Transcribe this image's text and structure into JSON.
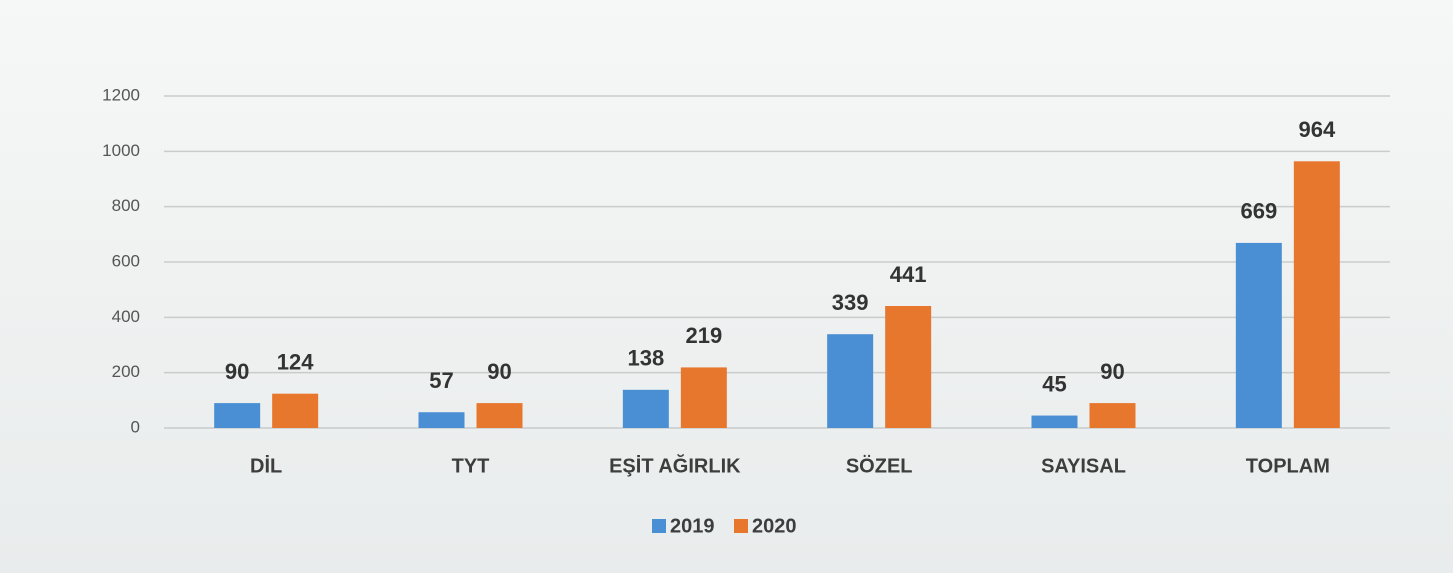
{
  "chart_data": {
    "type": "bar",
    "categories": [
      "DİL",
      "TYT",
      "EŞİT AĞIRLIK",
      "SÖZEL",
      "SAYISAL",
      "TOPLAM"
    ],
    "series": [
      {
        "name": "2019",
        "color": "#4a8fd4",
        "values": [
          90,
          57,
          138,
          339,
          45,
          669
        ]
      },
      {
        "name": "2020",
        "color": "#e8772e",
        "values": [
          124,
          90,
          219,
          441,
          90,
          964
        ]
      }
    ],
    "ylim": [
      0,
      1200
    ],
    "yticks": [
      0,
      200,
      400,
      600,
      800,
      1000,
      1200
    ],
    "grid": true,
    "legend": "bottom"
  }
}
